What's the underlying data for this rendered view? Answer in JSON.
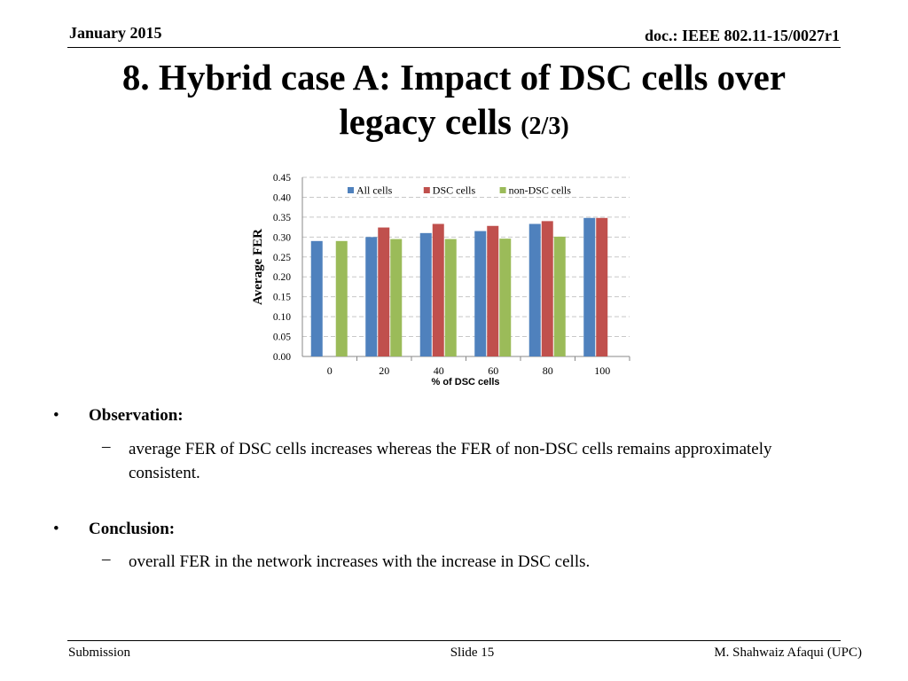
{
  "header": {
    "date": "January 2015",
    "doc_id": "doc.: IEEE 802.11-15/0027r1"
  },
  "slide": {
    "title_line1": "8. Hybrid case A: Impact of DSC cells over",
    "title_line2": "legacy cells",
    "title_suffix": "(2/3)"
  },
  "bullets": [
    {
      "label": "Observation:",
      "sub": "average FER of DSC cells increases whereas the FER of non-DSC cells remains approximately consistent."
    },
    {
      "label": "Conclusion:",
      "sub": "overall FER in the network increases with the increase in DSC cells."
    }
  ],
  "footer": {
    "left": "Submission",
    "center": "Slide 15",
    "right": "M. Shahwaiz Afaqui (UPC)"
  },
  "chart_data": {
    "type": "bar",
    "categories": [
      "0",
      "20",
      "40",
      "60",
      "80",
      "100"
    ],
    "series": [
      {
        "name": "All cells",
        "color": "#4f81bd",
        "values": [
          0.29,
          0.3,
          0.31,
          0.315,
          0.333,
          0.348
        ]
      },
      {
        "name": "DSC cells",
        "color": "#c0504d",
        "values": [
          null,
          0.324,
          0.333,
          0.328,
          0.34,
          0.348
        ]
      },
      {
        "name": "non-DSC cells",
        "color": "#9bbb59",
        "values": [
          0.29,
          0.295,
          0.295,
          0.296,
          0.301,
          null
        ]
      }
    ],
    "xlabel": "% of  DSC cells",
    "ylabel": "Average FER",
    "ylim": [
      0,
      0.45
    ],
    "yticks": [
      "0.00",
      "0.05",
      "0.10",
      "0.15",
      "0.20",
      "0.25",
      "0.30",
      "0.35",
      "0.40",
      "0.45"
    ],
    "grid": true,
    "legend_position": "top"
  }
}
